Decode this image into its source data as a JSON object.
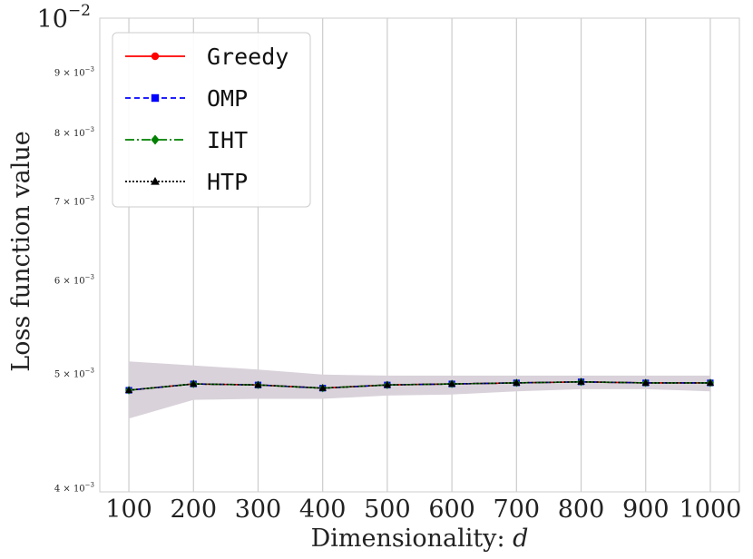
{
  "chart_data": {
    "type": "line",
    "xlabel": "Dimensionality: ",
    "xlabel_var": "d",
    "ylabel": "Loss function value",
    "x": [
      100,
      200,
      300,
      400,
      500,
      600,
      700,
      800,
      900,
      1000
    ],
    "xticks": [
      "100",
      "200",
      "300",
      "400",
      "500",
      "600",
      "700",
      "800",
      "900",
      "1000"
    ],
    "xlim": [
      55,
      1045
    ],
    "yscale": "log",
    "ylim": [
      0.00397,
      0.01
    ],
    "yticks_major": [
      {
        "value": 0.01,
        "base": "10",
        "exp": "−2"
      }
    ],
    "yticks_minor": [
      {
        "value": 0.009,
        "mant": "9",
        "base": "10",
        "exp": "−3"
      },
      {
        "value": 0.008,
        "mant": "8",
        "base": "10",
        "exp": "−3"
      },
      {
        "value": 0.007,
        "mant": "7",
        "base": "10",
        "exp": "−3"
      },
      {
        "value": 0.006,
        "mant": "6",
        "base": "10",
        "exp": "−3"
      },
      {
        "value": 0.005,
        "mant": "5",
        "base": "10",
        "exp": "−3"
      },
      {
        "value": 0.004,
        "mant": "4",
        "base": "10",
        "exp": "−3"
      }
    ],
    "grid": "vertical",
    "band": {
      "upper": [
        0.00512,
        0.00508,
        0.00504,
        0.00499,
        0.00498,
        0.00498,
        0.00498,
        0.00498,
        0.00498,
        0.00498
      ],
      "lower": [
        0.00458,
        0.00475,
        0.00476,
        0.00476,
        0.00479,
        0.0048,
        0.00483,
        0.00485,
        0.00485,
        0.00483
      ],
      "color": "#d9d2da"
    },
    "series": [
      {
        "name": "Greedy",
        "color": "#ff0000",
        "marker": "circle",
        "dash": "",
        "values": [
          0.00484,
          0.0049,
          0.00489,
          0.00486,
          0.00489,
          0.0049,
          0.00491,
          0.00492,
          0.00491,
          0.00491
        ]
      },
      {
        "name": "OMP",
        "color": "#0000ff",
        "marker": "square",
        "dash": "6,4",
        "values": [
          0.00484,
          0.0049,
          0.00489,
          0.00486,
          0.00489,
          0.0049,
          0.00491,
          0.00492,
          0.00491,
          0.00491
        ]
      },
      {
        "name": "IHT",
        "color": "#008000",
        "marker": "diamond",
        "dash": "10,3,2,3",
        "values": [
          0.00484,
          0.0049,
          0.00489,
          0.00486,
          0.00489,
          0.0049,
          0.00491,
          0.00492,
          0.00491,
          0.00491
        ]
      },
      {
        "name": "HTP",
        "color": "#000000",
        "marker": "triangle",
        "dash": "2,2",
        "values": [
          0.00484,
          0.0049,
          0.00489,
          0.00486,
          0.00489,
          0.0049,
          0.00491,
          0.00492,
          0.00491,
          0.00491
        ]
      }
    ],
    "legend": "top-left"
  }
}
